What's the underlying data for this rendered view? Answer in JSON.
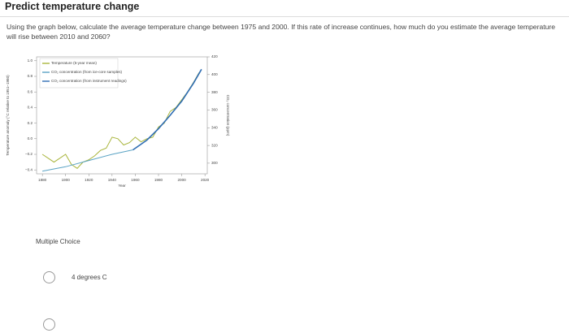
{
  "header": {
    "title": "Predict temperature change"
  },
  "question": {
    "text": "Using the graph below, calculate the average temperature change between 1975 and 2000. If this rate of increase continues, how much do you estimate the average temperature will rise between 2010 and 2060?"
  },
  "figure": {
    "chart_data": {
      "type": "line",
      "xlabel": "Year",
      "ylabel": "Temperature anomaly (°C relative to 1951–1980)",
      "y2label": "CO₂ concentration (ppm)",
      "xlim": [
        1875,
        2022
      ],
      "xticks": [
        1880,
        1900,
        1920,
        1940,
        1960,
        1980,
        2000,
        2020
      ],
      "ylim": [
        -0.45,
        1.05
      ],
      "yticks": [
        {
          "value": -0.4,
          "label": "−0.4"
        },
        {
          "value": -0.2,
          "label": "−0.2"
        },
        {
          "value": 0,
          "label": "0.0"
        },
        0.2,
        0.4,
        0.6,
        0.8,
        {
          "value": 1,
          "label": "1.0"
        }
      ],
      "y2lim": [
        288,
        420
      ],
      "y2ticks": [
        300,
        320,
        340,
        360,
        380,
        400,
        420
      ],
      "series": [
        {
          "name": "Temperature (5-year mean)",
          "color": "#a9b53c",
          "x": [
            1880,
            1885,
            1890,
            1895,
            1900,
            1905,
            1910,
            1915,
            1920,
            1925,
            1930,
            1935,
            1940,
            1945,
            1950,
            1955,
            1960,
            1965,
            1970,
            1975,
            1980,
            1985,
            1990,
            1995,
            2000,
            2005,
            2010,
            2015
          ],
          "values": [
            -0.2,
            -0.25,
            -0.3,
            -0.25,
            -0.2,
            -0.33,
            -0.38,
            -0.3,
            -0.27,
            -0.22,
            -0.15,
            -0.12,
            0.02,
            0.0,
            -0.08,
            -0.05,
            0.02,
            -0.04,
            0.0,
            0.02,
            0.15,
            0.2,
            0.35,
            0.4,
            0.5,
            0.6,
            0.72,
            0.85
          ]
        },
        {
          "name": "CO₂ concentration (from ice-core samples)",
          "color": "#5aa3c4",
          "axis": "y2",
          "x": [
            1880,
            1900,
            1920,
            1940,
            1958
          ],
          "values": [
            291,
            296,
            303,
            310,
            315
          ]
        },
        {
          "name": "CO₂ concentration (from instrument readings)",
          "color": "#2f6db3",
          "axis": "y2",
          "x": [
            1958,
            1970,
            1980,
            1990,
            2000,
            2010,
            2017
          ],
          "values": [
            315,
            326,
            339,
            354,
            370,
            390,
            406
          ]
        }
      ]
    }
  },
  "answers": {
    "label": "Multiple Choice",
    "options": [
      "4 degrees C"
    ]
  }
}
